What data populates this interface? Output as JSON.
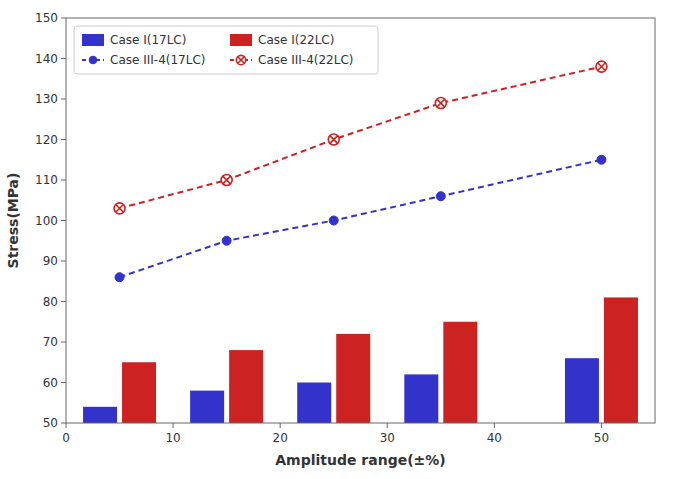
{
  "chart_data": {
    "type": "bar",
    "xlabel": "Amplitude range(±%)",
    "ylabel": "Stress(MPa)",
    "x": [
      5,
      15,
      25,
      35,
      50
    ],
    "series": [
      {
        "name": "Case I(17LC)",
        "type": "bar",
        "color": "#3333cc",
        "values": [
          54,
          58,
          60,
          62,
          66
        ]
      },
      {
        "name": "Case I(22LC)",
        "type": "bar",
        "color": "#cc2222",
        "values": [
          65,
          68,
          72,
          75,
          81
        ]
      },
      {
        "name": "Case III-4(17LC)",
        "type": "line",
        "color": "#3333cc",
        "marker": "circle",
        "line_style": "dashed",
        "values": [
          86,
          95,
          100,
          106,
          115
        ]
      },
      {
        "name": "Case III-4(22LC)",
        "type": "line",
        "color": "#cc2222",
        "marker": "circle-x",
        "line_style": "dashed",
        "values": [
          103,
          110,
          120,
          129,
          138
        ]
      }
    ],
    "xlim": [
      0,
      55
    ],
    "ylim": [
      50,
      150
    ],
    "xticks": [
      0,
      10,
      20,
      30,
      40,
      50
    ],
    "yticks": [
      50,
      60,
      70,
      80,
      90,
      100,
      110,
      120,
      130,
      140,
      150
    ],
    "grid": false,
    "legend": "upper-left"
  }
}
